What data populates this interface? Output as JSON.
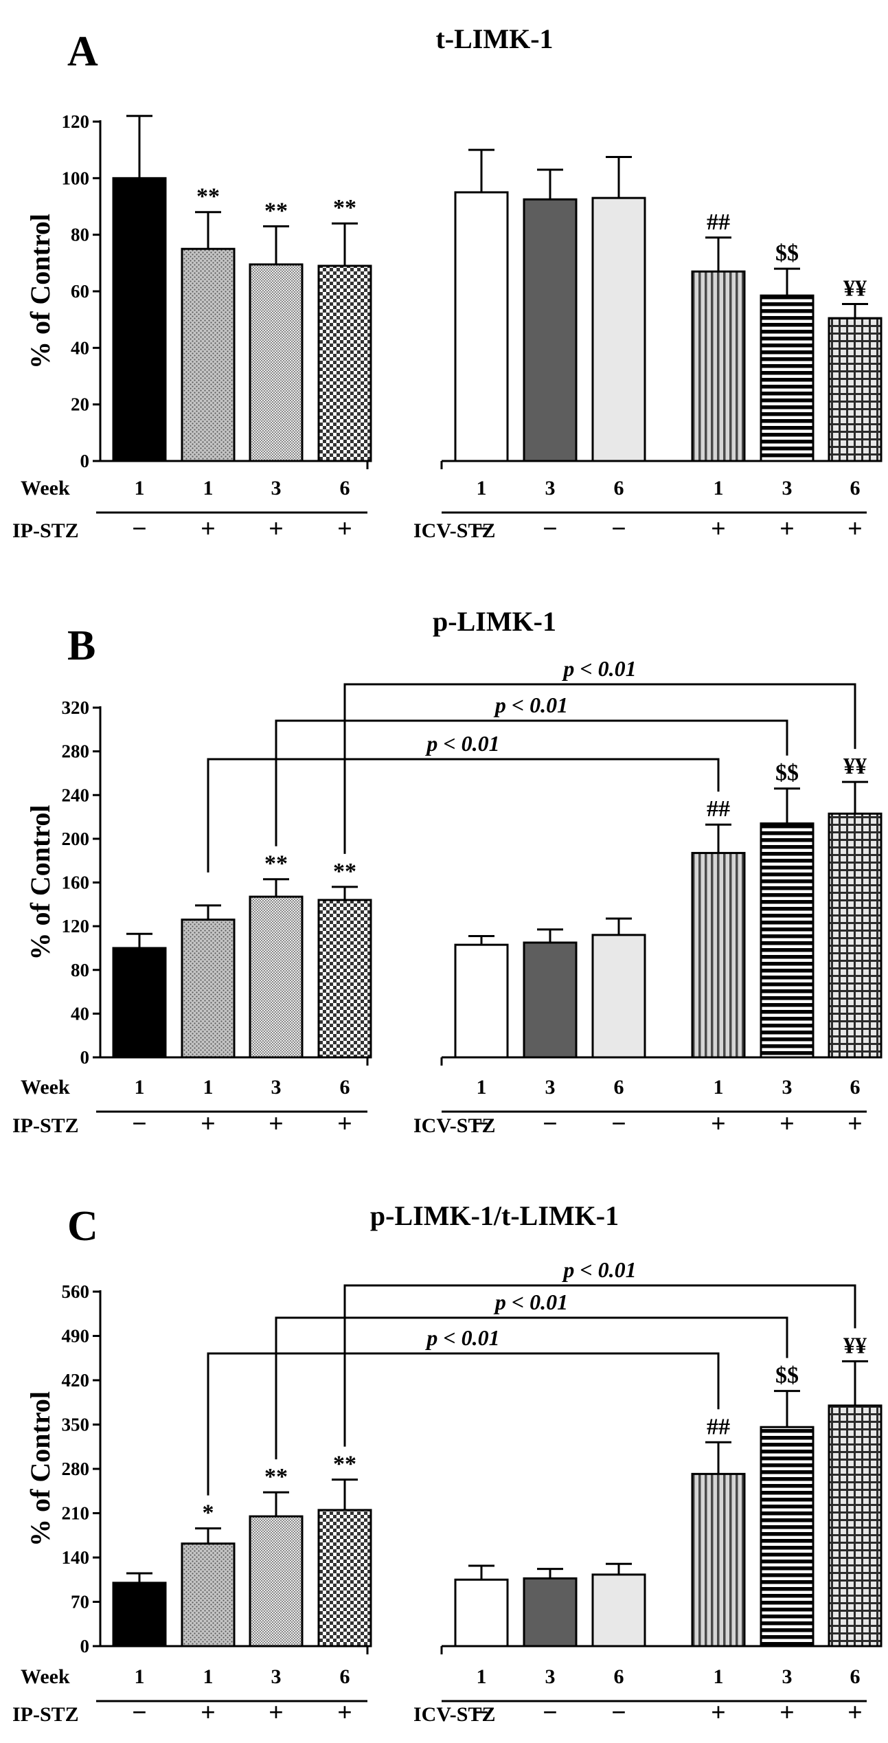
{
  "chart_data": [
    {
      "panel_letter": "A",
      "type": "bar",
      "title": "t-LIMK-1",
      "ylabel": "% of Control",
      "ylim": [
        0,
        120
      ],
      "yticks": [
        "0",
        "20",
        "40",
        "60",
        "80",
        "100",
        "120"
      ],
      "row_labels": {
        "week": "Week",
        "ip": "IP-STZ",
        "icv": "ICV-STZ"
      },
      "bars": [
        {
          "value": 100,
          "error": 22,
          "week": "1",
          "sign": "−",
          "fill": "black",
          "mark": ""
        },
        {
          "value": 75,
          "error": 13,
          "week": "1",
          "sign": "+",
          "fill": "dots",
          "mark": "**"
        },
        {
          "value": 69.5,
          "error": 13.5,
          "week": "3",
          "sign": "+",
          "fill": "fine",
          "mark": "**"
        },
        {
          "value": 69,
          "error": 15,
          "week": "6",
          "sign": "+",
          "fill": "checker",
          "mark": "**"
        },
        {
          "value": 95,
          "error": 15,
          "week": "1",
          "sign": "−",
          "fill": "white",
          "mark": ""
        },
        {
          "value": 92.5,
          "error": 10.5,
          "week": "3",
          "sign": "−",
          "fill": "dark",
          "mark": ""
        },
        {
          "value": 93,
          "error": 14.5,
          "week": "6",
          "sign": "−",
          "fill": "light",
          "mark": ""
        },
        {
          "value": 67,
          "error": 12,
          "week": "1",
          "sign": "+",
          "fill": "vstripes",
          "mark": "##"
        },
        {
          "value": 58.5,
          "error": 9.5,
          "week": "3",
          "sign": "+",
          "fill": "hstripes",
          "mark": "$$"
        },
        {
          "value": 50.5,
          "error": 5,
          "week": "6",
          "sign": "+",
          "fill": "grid",
          "mark": "¥¥"
        }
      ],
      "comparisons": []
    },
    {
      "panel_letter": "B",
      "type": "bar",
      "title": "p-LIMK-1",
      "ylabel": "% of Control",
      "ylim": [
        0,
        320
      ],
      "yticks": [
        "0",
        "40",
        "80",
        "120",
        "160",
        "200",
        "240",
        "280",
        "320"
      ],
      "row_labels": {
        "week": "Week",
        "ip": "IP-STZ",
        "icv": "ICV-STZ"
      },
      "bars": [
        {
          "value": 100,
          "error": 13,
          "week": "1",
          "sign": "−",
          "fill": "black",
          "mark": ""
        },
        {
          "value": 126,
          "error": 13,
          "week": "1",
          "sign": "+",
          "fill": "dots",
          "mark": ""
        },
        {
          "value": 147,
          "error": 16,
          "week": "3",
          "sign": "+",
          "fill": "fine",
          "mark": "**"
        },
        {
          "value": 144,
          "error": 12,
          "week": "6",
          "sign": "+",
          "fill": "checker",
          "mark": "**"
        },
        {
          "value": 103,
          "error": 8,
          "week": "1",
          "sign": "−",
          "fill": "white",
          "mark": ""
        },
        {
          "value": 105,
          "error": 12,
          "week": "3",
          "sign": "−",
          "fill": "dark",
          "mark": ""
        },
        {
          "value": 112,
          "error": 15,
          "week": "6",
          "sign": "−",
          "fill": "light",
          "mark": ""
        },
        {
          "value": 187,
          "error": 26,
          "week": "1",
          "sign": "+",
          "fill": "vstripes",
          "mark": "##"
        },
        {
          "value": 214,
          "error": 32,
          "week": "3",
          "sign": "+",
          "fill": "hstripes",
          "mark": "$$"
        },
        {
          "value": 223,
          "error": 29,
          "week": "6",
          "sign": "+",
          "fill": "grid",
          "mark": "¥¥"
        }
      ],
      "comparisons": [
        {
          "from": 1,
          "to": 7,
          "label": "p < 0.01",
          "level": 1
        },
        {
          "from": 2,
          "to": 8,
          "label": "p < 0.01",
          "level": 2
        },
        {
          "from": 3,
          "to": 9,
          "label": "p < 0.01",
          "level": 3
        }
      ]
    },
    {
      "panel_letter": "C",
      "type": "bar",
      "title": "p-LIMK-1/t-LIMK-1",
      "ylabel": "% of Control",
      "ylim": [
        0,
        560
      ],
      "yticks": [
        "0",
        "70",
        "140",
        "210",
        "280",
        "350",
        "420",
        "490",
        "560"
      ],
      "row_labels": {
        "week": "Week",
        "ip": "IP-STZ",
        "icv": "ICV-STZ"
      },
      "bars": [
        {
          "value": 100,
          "error": 15,
          "week": "1",
          "sign": "−",
          "fill": "black",
          "mark": ""
        },
        {
          "value": 162,
          "error": 24,
          "week": "1",
          "sign": "+",
          "fill": "dots",
          "mark": "*"
        },
        {
          "value": 205,
          "error": 38,
          "week": "3",
          "sign": "+",
          "fill": "fine",
          "mark": "**"
        },
        {
          "value": 215,
          "error": 48,
          "week": "6",
          "sign": "+",
          "fill": "checker",
          "mark": "**"
        },
        {
          "value": 105,
          "error": 22,
          "week": "1",
          "sign": "−",
          "fill": "white",
          "mark": ""
        },
        {
          "value": 107,
          "error": 15,
          "week": "3",
          "sign": "−",
          "fill": "dark",
          "mark": ""
        },
        {
          "value": 113,
          "error": 17,
          "week": "6",
          "sign": "−",
          "fill": "light",
          "mark": ""
        },
        {
          "value": 272,
          "error": 50,
          "week": "1",
          "sign": "+",
          "fill": "vstripes",
          "mark": "##"
        },
        {
          "value": 346,
          "error": 57,
          "week": "3",
          "sign": "+",
          "fill": "hstripes",
          "mark": "$$"
        },
        {
          "value": 380,
          "error": 70,
          "week": "6",
          "sign": "+",
          "fill": "grid",
          "mark": "¥¥"
        }
      ],
      "comparisons": [
        {
          "from": 1,
          "to": 7,
          "label": "p < 0.01",
          "level": 1
        },
        {
          "from": 2,
          "to": 8,
          "label": "p < 0.01",
          "level": 2
        },
        {
          "from": 3,
          "to": 9,
          "label": "p < 0.01",
          "level": 3
        }
      ]
    }
  ]
}
